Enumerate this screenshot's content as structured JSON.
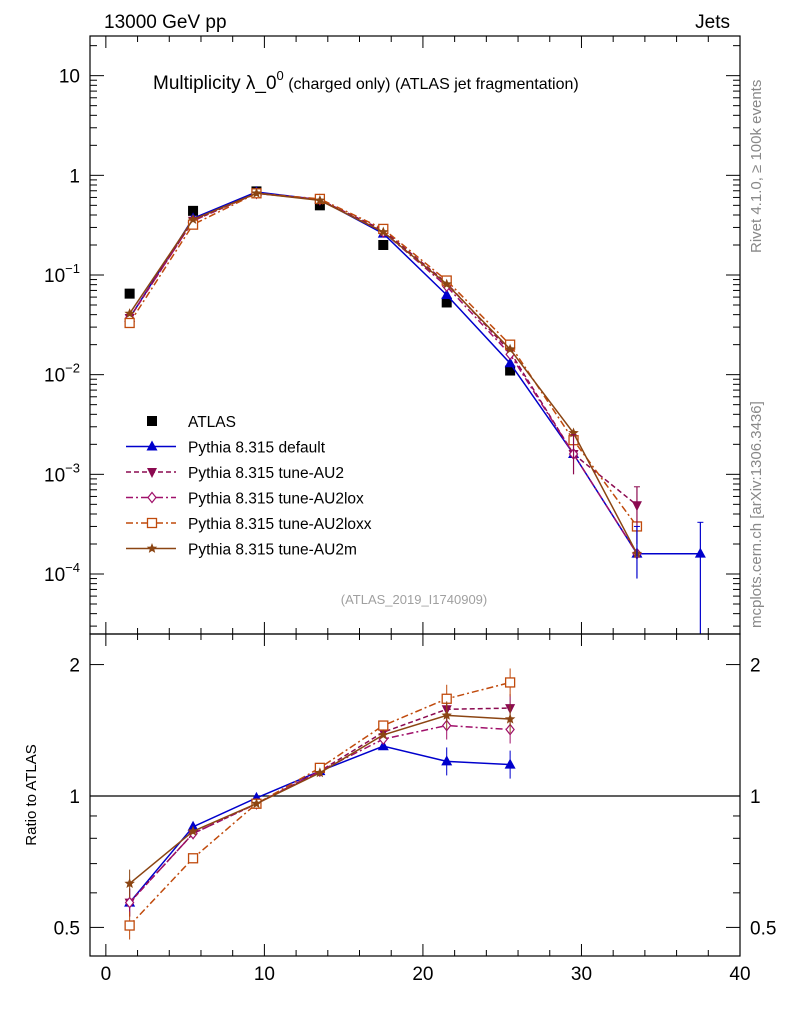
{
  "header": {
    "left": "13000 GeV pp",
    "right": "Jets"
  },
  "side_labels": {
    "rivet": "Rivet 4.1.0, ≥ 100k events",
    "mcplots": "mcplots.cern.ch [arXiv:1306.3436]"
  },
  "chart_data": [
    {
      "type": "line",
      "panel": "main",
      "title_main": "Multiplicity λ_0",
      "title_sup": "0",
      "title_rest": " (charged only) (ATLAS jet fragmentation)",
      "yscale": "log",
      "xlim": [
        -1,
        40
      ],
      "ylim": [
        2.5e-05,
        25
      ],
      "y_ticks": [
        {
          "value": 10,
          "base": "10",
          "exp": ""
        },
        {
          "value": 1,
          "base": "1",
          "exp": ""
        },
        {
          "value": 0.1,
          "base": "10",
          "exp": "−1"
        },
        {
          "value": 0.01,
          "base": "10",
          "exp": "−2"
        },
        {
          "value": 0.001,
          "base": "10",
          "exp": "−3"
        },
        {
          "value": 0.0001,
          "base": "10",
          "exp": "−4"
        }
      ],
      "watermark": "(ATLAS_2019_I1740909)",
      "legend_position": "middle-left",
      "series": [
        {
          "name": "ATLAS",
          "color": "#000000",
          "marker": "square",
          "dash": "none",
          "x": [
            1.5,
            5.5,
            9.5,
            13.5,
            17.5,
            21.5,
            25.5
          ],
          "y": [
            0.065,
            0.44,
            0.69,
            0.5,
            0.2,
            0.053,
            0.011
          ]
        },
        {
          "name": "Pythia 8.315 default",
          "color": "#0000cc",
          "marker": "triangle-up",
          "dash": "solid",
          "x": [
            1.5,
            5.5,
            9.5,
            13.5,
            17.5,
            21.5,
            25.5,
            29.5,
            33.5,
            37.5
          ],
          "y": [
            0.037,
            0.37,
            0.68,
            0.57,
            0.26,
            0.063,
            0.013,
            0.0016,
            0.00016,
            0.00016
          ]
        },
        {
          "name": "Pythia 8.315 tune-AU2",
          "color": "#8b0a50",
          "marker": "triangle-down",
          "dash": "dashed",
          "x": [
            1.5,
            5.5,
            9.5,
            13.5,
            17.5,
            21.5,
            25.5,
            29.5,
            33.5
          ],
          "y": [
            0.037,
            0.35,
            0.66,
            0.57,
            0.28,
            0.083,
            0.017,
            0.0016,
            0.00049
          ]
        },
        {
          "name": "Pythia 8.315 tune-AU2lox",
          "color": "#a0106a",
          "marker": "diamond-open",
          "dash": "dashdot",
          "x": [
            1.5,
            5.5,
            9.5,
            13.5,
            17.5,
            21.5,
            25.5,
            29.5,
            33.5
          ],
          "y": [
            0.037,
            0.35,
            0.66,
            0.57,
            0.27,
            0.077,
            0.016,
            0.0016,
            0.00016
          ]
        },
        {
          "name": "Pythia 8.315 tune-AU2loxx",
          "color": "#c04a0c",
          "marker": "square-open",
          "dash": "dashdot",
          "x": [
            1.5,
            5.5,
            9.5,
            13.5,
            17.5,
            21.5,
            25.5,
            29.5,
            33.5
          ],
          "y": [
            0.033,
            0.32,
            0.66,
            0.58,
            0.29,
            0.088,
            0.02,
            0.0022,
            0.0003
          ]
        },
        {
          "name": "Pythia 8.315 tune-AU2m",
          "color": "#8b4513",
          "marker": "star",
          "dash": "solid",
          "x": [
            1.5,
            5.5,
            9.5,
            13.5,
            17.5,
            21.5,
            25.5,
            29.5,
            33.5
          ],
          "y": [
            0.041,
            0.36,
            0.66,
            0.56,
            0.27,
            0.081,
            0.018,
            0.0026,
            0.00016
          ]
        }
      ]
    },
    {
      "type": "line",
      "panel": "ratio",
      "ylabel": "Ratio to ATLAS",
      "yscale": "log",
      "xlim": [
        -1,
        40
      ],
      "ylim": [
        0.43,
        2.35
      ],
      "x_ticks": [
        0,
        10,
        20,
        30,
        40
      ],
      "y_ticks": [
        0.5,
        1,
        2
      ],
      "reference_line": 1,
      "series": [
        {
          "name": "Pythia 8.315 default",
          "x": [
            1.5,
            5.5,
            9.5,
            13.5,
            17.5,
            21.5,
            25.5
          ],
          "y": [
            0.57,
            0.85,
            0.99,
            1.14,
            1.3,
            1.2,
            1.18
          ]
        },
        {
          "name": "Pythia 8.315 tune-AU2",
          "x": [
            1.5,
            5.5,
            9.5,
            13.5,
            17.5,
            21.5,
            25.5
          ],
          "y": [
            0.57,
            0.82,
            0.96,
            1.14,
            1.4,
            1.58,
            1.59
          ]
        },
        {
          "name": "Pythia 8.315 tune-AU2lox",
          "x": [
            1.5,
            5.5,
            9.5,
            13.5,
            17.5,
            21.5,
            25.5
          ],
          "y": [
            0.57,
            0.82,
            0.96,
            1.14,
            1.35,
            1.45,
            1.42
          ]
        },
        {
          "name": "Pythia 8.315 tune-AU2loxx",
          "x": [
            1.5,
            5.5,
            9.5,
            13.5,
            17.5,
            21.5,
            25.5
          ],
          "y": [
            0.505,
            0.72,
            0.96,
            1.16,
            1.45,
            1.67,
            1.82
          ]
        },
        {
          "name": "Pythia 8.315 tune-AU2m",
          "x": [
            1.5,
            5.5,
            9.5,
            13.5,
            17.5,
            21.5,
            25.5
          ],
          "y": [
            0.63,
            0.83,
            0.96,
            1.13,
            1.38,
            1.53,
            1.5
          ]
        }
      ]
    }
  ]
}
